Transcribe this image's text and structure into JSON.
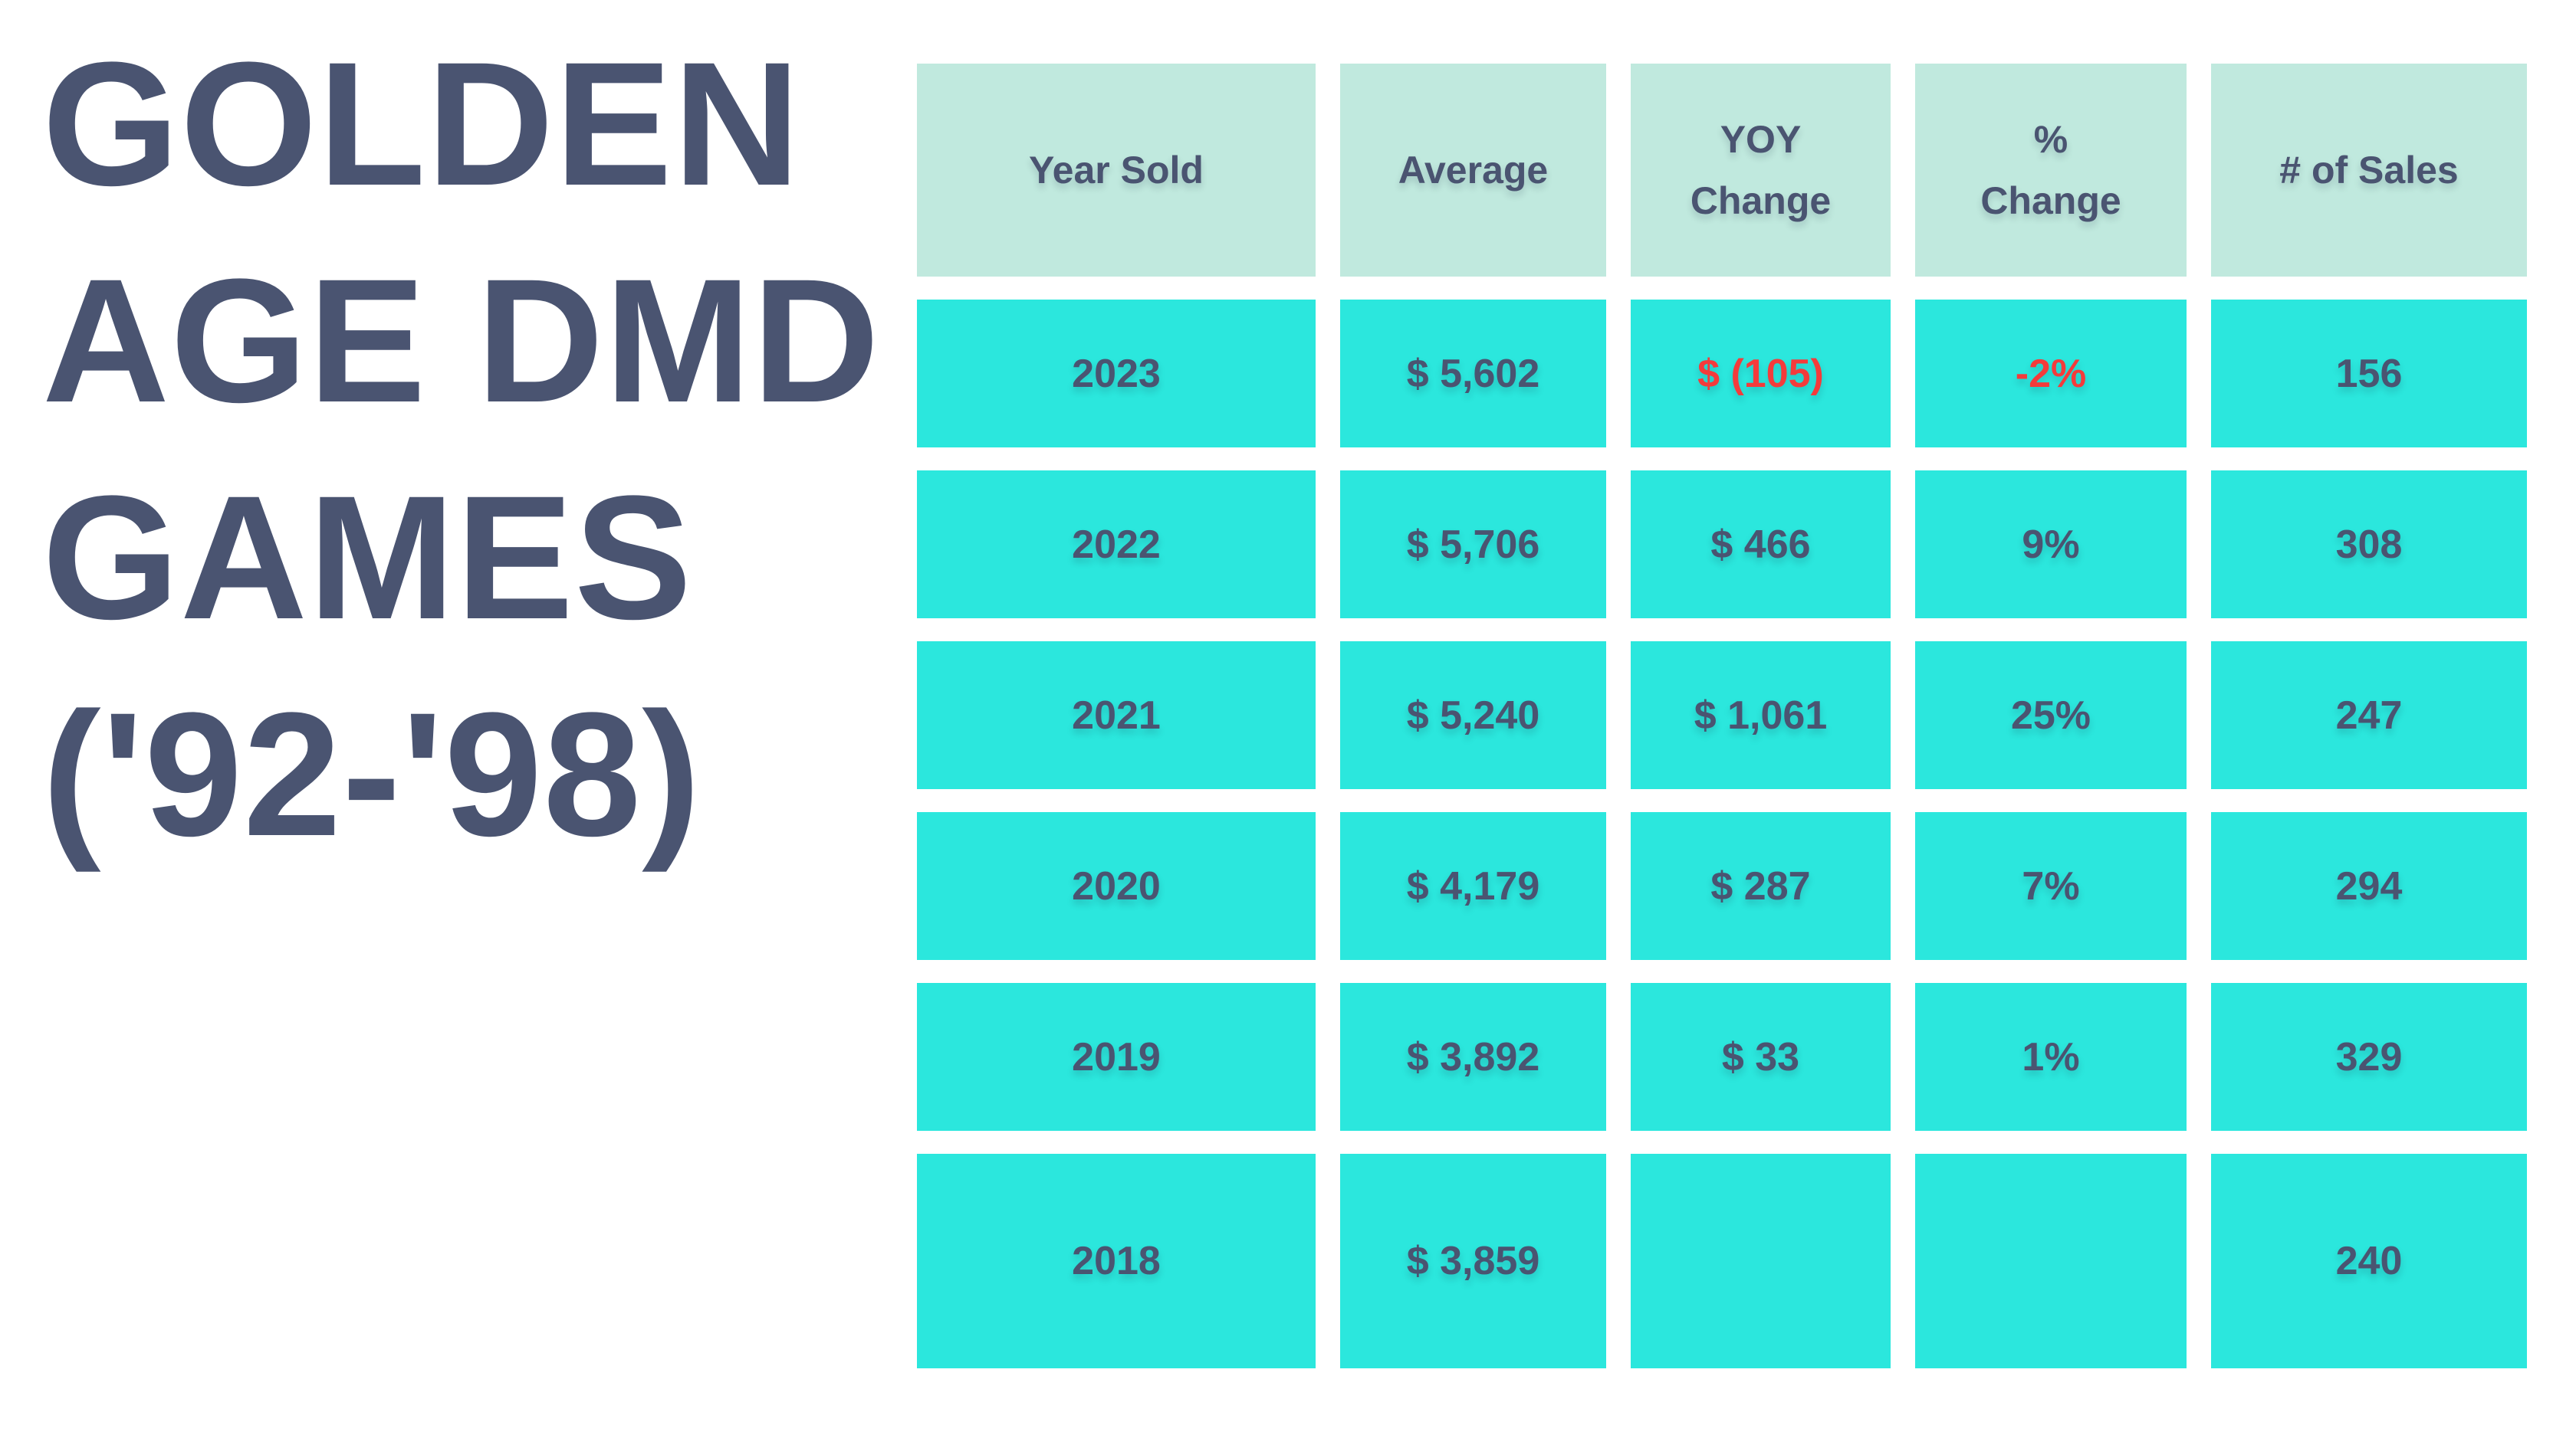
{
  "title": {
    "line1": "GOLDEN",
    "line2": "AGE DMD",
    "line3": "GAMES",
    "line4": "('92-'98)"
  },
  "chart_data": {
    "type": "table",
    "title": "GOLDEN AGE DMD GAMES ('92-'98)",
    "columns": [
      "Year Sold",
      "Average",
      "YOY Change",
      "% Change",
      "# of Sales"
    ],
    "rows": [
      [
        "2023",
        "$ 5,602",
        "$ (105)",
        "-2%",
        "156"
      ],
      [
        "2022",
        "$ 5,706",
        "$ 466",
        "9%",
        "308"
      ],
      [
        "2021",
        "$ 5,240",
        "$ 1,061",
        "25%",
        "247"
      ],
      [
        "2020",
        "$ 4,179",
        "$ 287",
        "7%",
        "294"
      ],
      [
        "2019",
        "$ 3,892",
        "$ 33",
        "1%",
        "329"
      ],
      [
        "2018",
        "$ 3,859",
        "",
        "",
        "240"
      ]
    ],
    "negative_value_cells": [
      {
        "row": "2023",
        "column": "YOY Change",
        "value": "$ (105)"
      },
      {
        "row": "2023",
        "column": "% Change",
        "value": "-2%"
      }
    ]
  },
  "colors": {
    "background": "#ffffff",
    "header_cell_bg": "#c0e9de",
    "data_cell_bg": "#2be7dd",
    "text_dark": "#4a5471",
    "negative_red": "#f43b3b"
  }
}
